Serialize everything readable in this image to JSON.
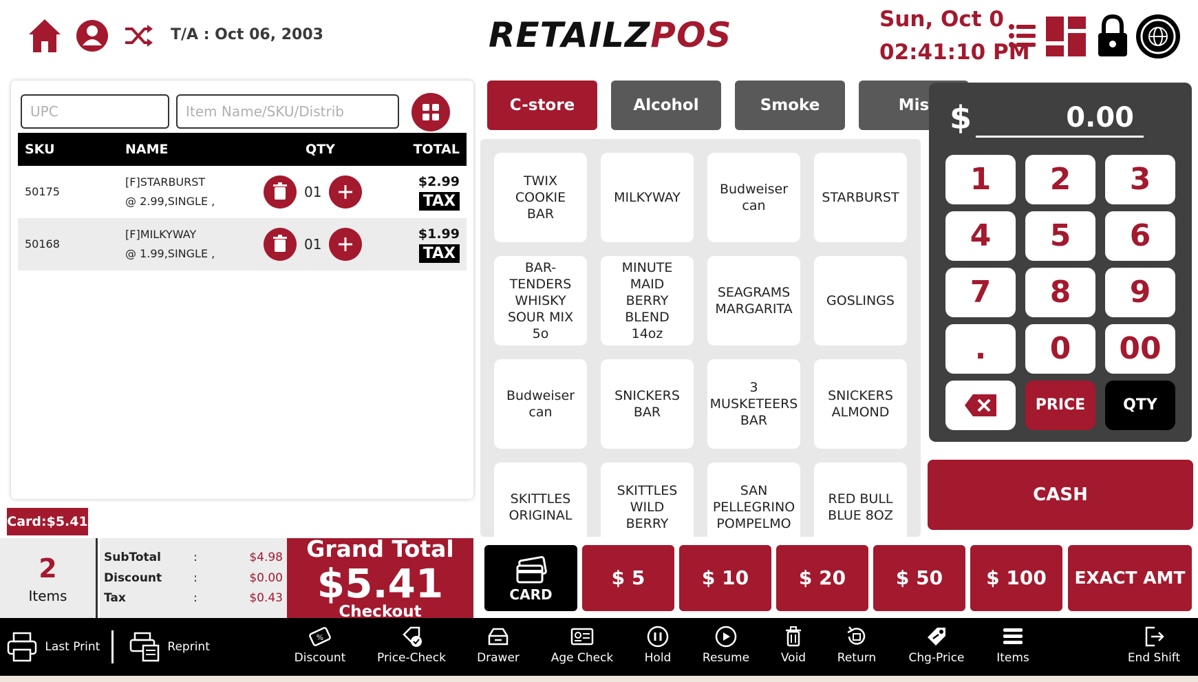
{
  "header": {
    "ta_text": "T/A : Oct 06, 2003",
    "logo_left": "RETAILZ",
    "logo_right": "POS",
    "date": "Sun, Oct 0",
    "time": "02:41:10 PM"
  },
  "search": {
    "upc_placeholder": "UPC",
    "item_placeholder": "Item Name/SKU/Distrib"
  },
  "cart": {
    "headers": {
      "sku": "SKU",
      "name": "NAME",
      "qty": "QTY",
      "total": "TOTAL"
    },
    "rows": [
      {
        "sku": "50175",
        "name": "[F]STARBURST",
        "detail": "@ 2.99,SINGLE ,",
        "qty": "01",
        "total": "$2.99",
        "tax": "TAX"
      },
      {
        "sku": "50168",
        "name": "[F]MILKYWAY",
        "detail": "@ 1.99,SINGLE ,",
        "qty": "01",
        "total": "$1.99",
        "tax": "TAX"
      }
    ],
    "card_badge": "Card:$5.41"
  },
  "summary": {
    "items_count": "2",
    "items_label": "Items",
    "subtotal_label": "SubTotal",
    "subtotal": "$4.98",
    "discount_label": "Discount",
    "discount": "$0.00",
    "tax_label": "Tax",
    "tax": "$0.43",
    "colon": ":",
    "grand_label": "Grand Total",
    "grand_value": "$5.41",
    "checkout": "Checkout"
  },
  "categories": [
    "C-store",
    "Alcohol",
    "Smoke",
    "Mis"
  ],
  "products": [
    "TWIX COOKIE BAR",
    "MILKYWAY",
    "Budweiser can",
    "STARBURST",
    "BAR-TENDERS WHISKY SOUR MIX 5o",
    "MINUTE MAID BERRY BLEND 14oz",
    "SEAGRAMS MARGARITA",
    "GOSLINGS",
    "Budweiser can",
    "SNICKERS BAR",
    "3 MUSKETEERS BAR",
    "SNICKERS ALMOND",
    "SKITTLES ORIGINAL",
    "SKITTLES WILD BERRY",
    "SAN PELLEGRINO POMPELMO",
    "RED BULL BLUE  8OZ"
  ],
  "keypad": {
    "currency": "$",
    "amount": "0.00",
    "keys": [
      "1",
      "2",
      "3",
      "4",
      "5",
      "6",
      "7",
      "8",
      "9",
      ".",
      "0",
      "00"
    ],
    "price": "PRICE",
    "qty": "QTY"
  },
  "cash_label": "CASH",
  "tenders": {
    "card": "CARD",
    "amounts": [
      "$ 5",
      "$ 10",
      "$ 20",
      "$ 50",
      "$ 100"
    ],
    "exact": "EXACT AMT"
  },
  "toolbar": {
    "last_print": "Last Print",
    "reprint": "Reprint",
    "discount": "Discount",
    "price_check": "Price-Check",
    "drawer": "Drawer",
    "age_check": "Age Check",
    "hold": "Hold",
    "resume": "Resume",
    "void": "Void",
    "return": "Return",
    "chg_price": "Chg-Price",
    "items": "Items",
    "end_shift": "End Shift"
  },
  "colors": {
    "accent": "#a3192e",
    "dark": "#000000",
    "panel": "#404040"
  }
}
